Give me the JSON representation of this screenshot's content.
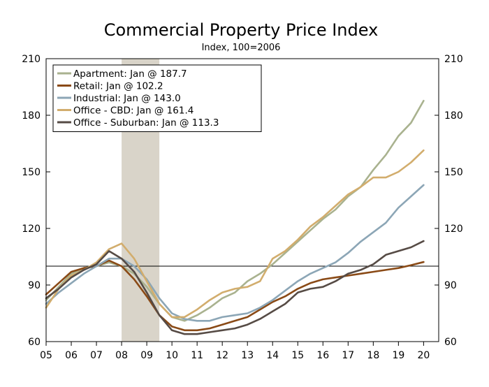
{
  "chart_data": {
    "type": "line",
    "title": "Commercial Property Price Index",
    "subtitle": "Index, 100=2006",
    "xlabel": "",
    "ylabel": "",
    "x_tick_labels": [
      "05",
      "06",
      "07",
      "08",
      "09",
      "10",
      "11",
      "12",
      "13",
      "14",
      "15",
      "16",
      "17",
      "18",
      "19",
      "20"
    ],
    "x_tick_values": [
      2005,
      2006,
      2007,
      2008,
      2009,
      2010,
      2011,
      2012,
      2013,
      2014,
      2015,
      2016,
      2017,
      2018,
      2019,
      2020
    ],
    "xlim": [
      2005,
      2020.6
    ],
    "ylim": [
      60,
      210
    ],
    "y_ticks": [
      60,
      90,
      120,
      150,
      180,
      210
    ],
    "y_tick_labels": [
      "60",
      "90",
      "120",
      "150",
      "180",
      "210"
    ],
    "reference_line": 100,
    "shaded_region": [
      2008.0,
      2009.5
    ],
    "grid": false,
    "legend_position": "top-left",
    "series": [
      {
        "name": "Apartment: Jan @ 187.7",
        "color": "#a9b28f",
        "x": [
          2005,
          2005.5,
          2006,
          2006.5,
          2007,
          2007.5,
          2008,
          2008.5,
          2009,
          2009.5,
          2010,
          2010.5,
          2011,
          2011.5,
          2012,
          2012.5,
          2013,
          2013.5,
          2014,
          2014.5,
          2015,
          2015.5,
          2016,
          2016.5,
          2017,
          2017.5,
          2018,
          2018.5,
          2019,
          2019.5,
          2020
        ],
        "values": [
          82,
          89,
          96,
          99,
          100,
          102,
          100,
          96,
          89,
          80,
          73,
          71,
          74,
          78,
          83,
          86,
          92,
          96,
          101,
          107,
          113,
          119,
          125,
          130,
          137,
          142,
          151,
          159,
          169,
          176,
          187.7
        ]
      },
      {
        "name": "Retail: Jan @ 102.2",
        "color": "#8a4a16",
        "x": [
          2005,
          2005.5,
          2006,
          2006.5,
          2007,
          2007.5,
          2008,
          2008.5,
          2009,
          2009.5,
          2010,
          2010.5,
          2011,
          2011.5,
          2012,
          2012.5,
          2013,
          2013.5,
          2014,
          2014.5,
          2015,
          2015.5,
          2016,
          2016.5,
          2017,
          2017.5,
          2018,
          2018.5,
          2019,
          2019.5,
          2020
        ],
        "values": [
          85,
          91,
          97,
          99,
          100,
          103,
          100,
          93,
          84,
          74,
          68,
          66,
          66,
          67,
          69,
          71,
          73,
          77,
          81,
          84,
          88,
          91,
          93,
          94,
          95,
          96,
          97,
          98,
          99,
          100.5,
          102.2
        ]
      },
      {
        "name": "Industrial: Jan @ 143.0",
        "color": "#8ca6b6",
        "x": [
          2005,
          2005.5,
          2006,
          2006.5,
          2007,
          2007.5,
          2008,
          2008.5,
          2009,
          2009.5,
          2010,
          2010.5,
          2011,
          2011.5,
          2012,
          2012.5,
          2013,
          2013.5,
          2014,
          2014.5,
          2015,
          2015.5,
          2016,
          2016.5,
          2017,
          2017.5,
          2018,
          2018.5,
          2019,
          2019.5,
          2020
        ],
        "values": [
          80,
          86,
          91,
          96,
          100,
          104,
          104,
          100,
          93,
          83,
          75,
          72,
          71,
          71,
          73,
          74,
          75,
          78,
          82,
          87,
          92,
          96,
          99,
          102,
          107,
          113,
          118,
          123,
          131,
          137,
          143
        ]
      },
      {
        "name": "Office - CBD: Jan @ 161.4",
        "color": "#d2ad6d",
        "x": [
          2005,
          2005.5,
          2006,
          2006.5,
          2007,
          2007.5,
          2008,
          2008.5,
          2009,
          2009.5,
          2010,
          2010.5,
          2011,
          2011.5,
          2012,
          2012.5,
          2013,
          2013.5,
          2014,
          2014.5,
          2015,
          2015.5,
          2016,
          2016.5,
          2017,
          2017.5,
          2018,
          2018.5,
          2019,
          2019.5,
          2020
        ],
        "values": [
          78,
          88,
          95,
          98,
          102,
          109,
          112,
          104,
          92,
          80,
          73,
          73,
          77,
          82,
          86,
          88,
          89,
          92,
          104,
          108,
          114,
          121,
          126,
          132,
          138,
          142,
          147,
          147,
          150,
          155,
          161.4
        ]
      },
      {
        "name": "Office - Suburban: Jan @ 113.3",
        "color": "#564b45",
        "x": [
          2005,
          2005.5,
          2006,
          2006.5,
          2007,
          2007.5,
          2008,
          2008.5,
          2009,
          2009.5,
          2010,
          2010.5,
          2011,
          2011.5,
          2012,
          2012.5,
          2013,
          2013.5,
          2014,
          2014.5,
          2015,
          2015.5,
          2016,
          2016.5,
          2017,
          2017.5,
          2018,
          2018.5,
          2019,
          2019.5,
          2020
        ],
        "values": [
          83,
          88,
          94,
          98,
          101,
          108,
          104,
          97,
          86,
          74,
          66,
          64,
          64,
          65,
          66,
          67,
          69,
          72,
          76,
          80,
          86,
          88,
          89,
          92,
          96,
          98,
          101,
          106,
          108,
          110,
          113.3
        ]
      }
    ]
  }
}
